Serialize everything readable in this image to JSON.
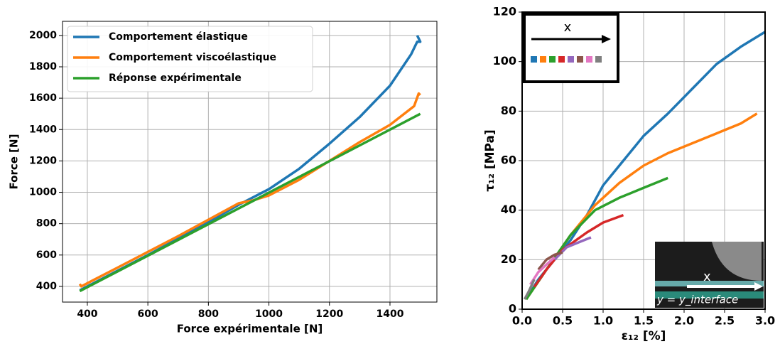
{
  "chart_data": [
    {
      "type": "line",
      "xlabel": "Force expérimentale [N]",
      "ylabel": "Force [N]",
      "xlim": [
        318,
        1555
      ],
      "xticks": [
        400,
        600,
        800,
        1000,
        1200,
        1400
      ],
      "ylim": [
        300,
        2090
      ],
      "yticks": [
        400,
        600,
        800,
        1000,
        1200,
        1400,
        1600,
        1800,
        2000
      ],
      "grid": true,
      "legend": "upper left",
      "series": [
        {
          "name": "Comportement élastique",
          "color": "#1f77b4",
          "x": [
            375,
            600,
            800,
            900,
            1000,
            1100,
            1200,
            1300,
            1400,
            1470,
            1490,
            1500,
            1490
          ],
          "values": [
            375,
            600,
            810,
            920,
            1020,
            1150,
            1310,
            1480,
            1680,
            1880,
            1960,
            1960,
            2000
          ]
        },
        {
          "name": "Comportement viscoélastique",
          "color": "#ff7f0e",
          "x": [
            375,
            380,
            500,
            700,
            900,
            950,
            1000,
            1100,
            1200,
            1300,
            1400,
            1480,
            1495,
            1500
          ],
          "values": [
            415,
            400,
            520,
            720,
            930,
            950,
            980,
            1080,
            1200,
            1320,
            1430,
            1550,
            1630,
            1620
          ]
        },
        {
          "name": "Réponse expérimentale",
          "color": "#2ca02c",
          "x": [
            375,
            1500
          ],
          "values": [
            370,
            1500
          ]
        }
      ]
    },
    {
      "type": "line",
      "xlabel": "ε₁₂ [%]",
      "ylabel": "τ₁₂ [MPa]",
      "xlim": [
        0,
        3
      ],
      "xticks": [
        {
          "value": 0,
          "label": "0.0"
        },
        {
          "value": 0.5,
          "label": "0.5"
        },
        {
          "value": 1,
          "label": "1.0"
        },
        {
          "value": 1.5,
          "label": "1.5"
        },
        {
          "value": 2,
          "label": "2.0"
        },
        {
          "value": 2.5,
          "label": "2.5"
        },
        {
          "value": 3,
          "label": "3.0"
        }
      ],
      "ylim": [
        0,
        120
      ],
      "yticks": [
        0,
        20,
        40,
        60,
        80,
        100,
        120
      ],
      "grid": true,
      "legend_label": "x",
      "image_labels": [
        "x",
        "y = y_interface"
      ],
      "series": [
        {
          "color": "#1f77b4",
          "x": [
            0.05,
            0.2,
            0.4,
            0.6,
            0.8,
            1.0,
            1.2,
            1.5,
            1.8,
            2.1,
            2.4,
            2.7,
            3.0
          ],
          "values": [
            4,
            12,
            20,
            28,
            38,
            50,
            58,
            70,
            79,
            89,
            99,
            106,
            112
          ]
        },
        {
          "color": "#ff7f0e",
          "x": [
            0.05,
            0.3,
            0.6,
            0.9,
            1.2,
            1.5,
            1.8,
            2.1,
            2.4,
            2.7,
            2.9
          ],
          "values": [
            4,
            16,
            30,
            42,
            51,
            58,
            63,
            67,
            71,
            75,
            79
          ]
        },
        {
          "color": "#2ca02c",
          "x": [
            0.05,
            0.3,
            0.6,
            0.9,
            1.2,
            1.5,
            1.8
          ],
          "values": [
            4,
            16,
            30,
            40,
            45,
            49,
            53
          ]
        },
        {
          "color": "#d62728",
          "x": [
            0.15,
            0.3,
            0.5,
            0.8,
            1.0,
            1.25
          ],
          "values": [
            9,
            16,
            24,
            31,
            35,
            38
          ]
        },
        {
          "color": "#9467bd",
          "x": [
            0.4,
            0.55,
            0.7,
            0.85
          ],
          "values": [
            20,
            25,
            27,
            29
          ]
        },
        {
          "color": "#8c564b",
          "x": [
            0.2,
            0.3,
            0.4,
            0.5
          ],
          "values": [
            16,
            20,
            22,
            23
          ]
        },
        {
          "color": "#e377c2",
          "x": [
            0.1,
            0.2,
            0.3,
            0.4
          ],
          "values": [
            10,
            15,
            18,
            21
          ]
        },
        {
          "color": "#7f7f7f",
          "x": [
            0.03,
            0.08,
            0.15
          ],
          "values": [
            4,
            7,
            12
          ]
        }
      ]
    }
  ]
}
